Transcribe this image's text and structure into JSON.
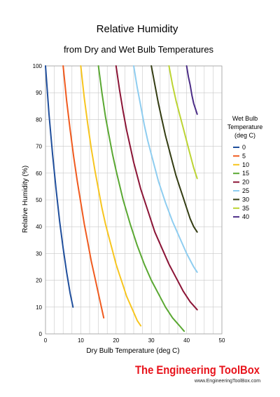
{
  "chart_data": {
    "type": "line",
    "title": "Relative Humidity",
    "subtitle": "from Dry and Wet Bulb Temperatures",
    "xlabel": "Dry Bulb Temperature (deg C)",
    "ylabel": "Relative Humidity (%)",
    "xlim": [
      0,
      50
    ],
    "ylim": [
      0,
      100
    ],
    "xticks": [
      "0",
      "10",
      "20",
      "30",
      "40",
      "50"
    ],
    "yticks": [
      "0",
      "10",
      "20",
      "30",
      "40",
      "50",
      "60",
      "70",
      "80",
      "90",
      "100"
    ],
    "grid": true,
    "legend_title": [
      "Wet Bulb",
      "Temperature",
      "(deg C)"
    ],
    "legend_position": "right",
    "series": [
      {
        "name": "0",
        "color": "#1f4e9c",
        "x": [
          0,
          1,
          2,
          3,
          4,
          5,
          6,
          7,
          7.8
        ],
        "y": [
          100,
          82,
          67,
          54,
          42,
          32,
          23,
          15,
          10
        ]
      },
      {
        "name": "5",
        "color": "#f05a1e",
        "x": [
          5,
          6,
          7,
          8,
          9,
          10,
          11,
          12,
          13,
          14,
          15,
          16.5
        ],
        "y": [
          100,
          87,
          76,
          66,
          57,
          49,
          41,
          34,
          27,
          21,
          15,
          6
        ]
      },
      {
        "name": "10",
        "color": "#f7c51e",
        "x": [
          10,
          11,
          12,
          13,
          14,
          15,
          16,
          17,
          18,
          19,
          20,
          21,
          22,
          23,
          24,
          25,
          26,
          27
        ],
        "y": [
          100,
          88,
          78,
          69,
          61,
          54,
          47,
          41,
          36,
          31,
          26,
          22,
          18,
          14,
          11,
          8,
          5,
          3
        ]
      },
      {
        "name": "15",
        "color": "#5aa832",
        "x": [
          15,
          16,
          17,
          18,
          19,
          20,
          22,
          24,
          26,
          28,
          30,
          32,
          34,
          36,
          38,
          39.3
        ],
        "y": [
          100,
          90,
          81,
          74,
          67,
          61,
          50,
          41,
          33,
          26,
          20,
          15,
          10,
          6,
          3,
          1
        ]
      },
      {
        "name": "20",
        "color": "#8b1436",
        "x": [
          20,
          21,
          22,
          23,
          24,
          25,
          27,
          29,
          31,
          33,
          35,
          37,
          39,
          41,
          43
        ],
        "y": [
          100,
          91,
          83,
          76,
          70,
          64,
          54,
          46,
          38,
          32,
          26,
          21,
          16,
          12,
          9
        ]
      },
      {
        "name": "25",
        "color": "#8ecdf0",
        "x": [
          25,
          26,
          27,
          28,
          29,
          30,
          32,
          34,
          36,
          38,
          40,
          42,
          43
        ],
        "y": [
          100,
          92,
          85,
          78,
          72,
          67,
          57,
          49,
          42,
          36,
          30,
          25,
          23
        ]
      },
      {
        "name": "30",
        "color": "#333c12",
        "x": [
          30,
          31,
          32,
          33,
          34,
          35,
          36,
          37,
          38,
          39,
          40,
          41,
          42,
          43
        ],
        "y": [
          100,
          93,
          86,
          80,
          74,
          69,
          64,
          59,
          55,
          51,
          47,
          43,
          40,
          38
        ]
      },
      {
        "name": "35",
        "color": "#bcd432",
        "x": [
          35,
          36,
          37,
          38,
          39,
          40,
          41,
          42,
          43
        ],
        "y": [
          100,
          93,
          87,
          82,
          77,
          72,
          67,
          62,
          58
        ]
      },
      {
        "name": "40",
        "color": "#4b2c86",
        "x": [
          40,
          40.5,
          41,
          41.5,
          42,
          42.5,
          43
        ],
        "y": [
          100,
          96,
          93,
          89,
          86,
          84,
          82
        ]
      }
    ]
  },
  "footer": {
    "brand": "The Engineering ToolBox",
    "url": "www.EngineeringToolBox.com"
  }
}
